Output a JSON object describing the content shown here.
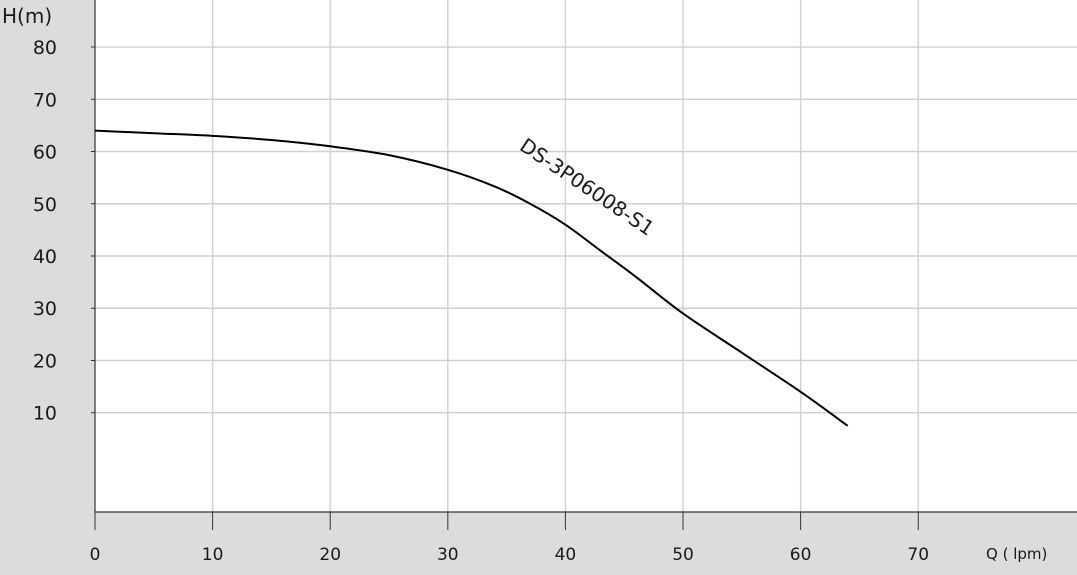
{
  "chart_data": {
    "type": "line",
    "ylabel": "H(m)",
    "xlabel": "Q ( lpm)",
    "x_ticks": [
      0,
      10,
      20,
      30,
      40,
      50,
      60,
      70
    ],
    "y_ticks": [
      10,
      20,
      30,
      40,
      50,
      60,
      70,
      80
    ],
    "xlim": [
      0,
      83.5
    ],
    "ylim": [
      -9,
      89
    ],
    "grid": true,
    "series": [
      {
        "name": "DS-3P06008-S1",
        "x": [
          0,
          5,
          10,
          15,
          20,
          25,
          30,
          34,
          37,
          40,
          43,
          46,
          50,
          55,
          60,
          64
        ],
        "y": [
          64,
          63.5,
          63,
          62.2,
          61,
          59.3,
          56.5,
          53.3,
          50,
          46,
          41,
          36,
          29,
          21.5,
          14,
          7.5
        ]
      }
    ],
    "annotations": [
      {
        "text": "DS-3P06008-S1",
        "x": 36,
        "y": 60.5,
        "rotation_deg": 34
      }
    ]
  }
}
